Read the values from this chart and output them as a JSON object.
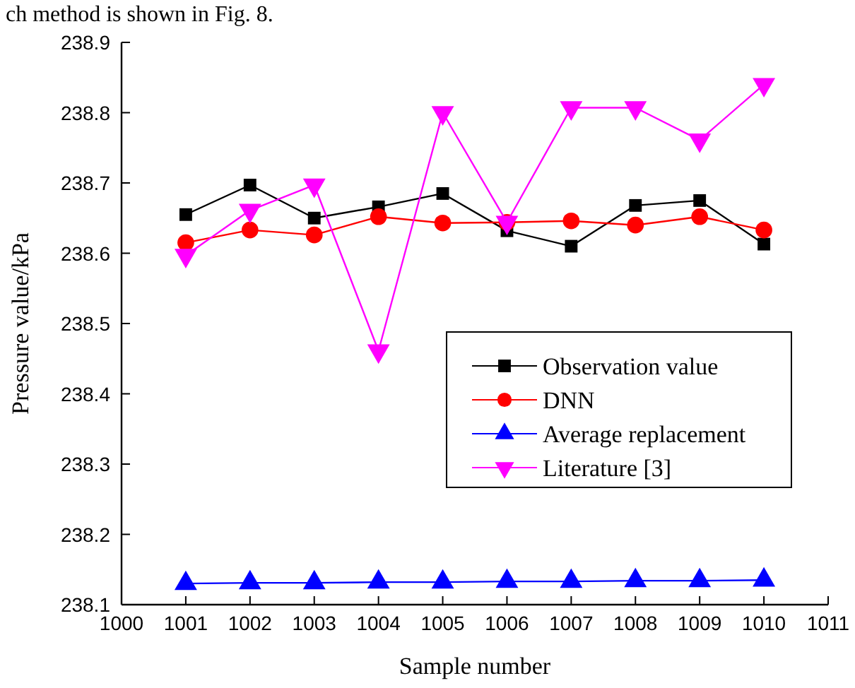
{
  "chart_data": {
    "type": "line",
    "xlabel": "Sample number",
    "ylabel": "Pressure value/kPa",
    "annotations": [
      "ch method is shown in Fig. 8."
    ],
    "x": [
      1001,
      1002,
      1003,
      1004,
      1005,
      1006,
      1007,
      1008,
      1009,
      1010
    ],
    "xlim": [
      1000,
      1011
    ],
    "xticks": [
      1000,
      1001,
      1002,
      1003,
      1004,
      1005,
      1006,
      1007,
      1008,
      1009,
      1010,
      1011
    ],
    "ylim": [
      238.1,
      238.9
    ],
    "yticks": [
      238.1,
      238.2,
      238.3,
      238.4,
      238.5,
      238.6,
      238.7,
      238.8,
      238.9
    ],
    "grid": false,
    "legend": "right",
    "line_style": "solid",
    "series": [
      {
        "name": "Observation value",
        "color": "#000000",
        "marker": "square",
        "values": [
          238.655,
          238.697,
          238.65,
          238.666,
          238.685,
          238.632,
          238.61,
          238.668,
          238.675,
          238.613
        ]
      },
      {
        "name": "DNN",
        "color": "#ff0000",
        "marker": "circle",
        "values": [
          238.615,
          238.633,
          238.626,
          238.652,
          238.643,
          238.644,
          238.646,
          238.64,
          238.652,
          238.633
        ]
      },
      {
        "name": "Average replacement",
        "color": "#0000ff",
        "marker": "triangle",
        "values": [
          238.13,
          238.131,
          238.131,
          238.132,
          238.132,
          238.133,
          238.133,
          238.134,
          238.134,
          238.135
        ]
      },
      {
        "name": "Literature [3]",
        "color": "#ff00ff",
        "marker": "triangle-down",
        "values": [
          238.597,
          238.661,
          238.697,
          238.461,
          238.8,
          238.644,
          238.807,
          238.807,
          238.761,
          238.84
        ]
      }
    ]
  }
}
